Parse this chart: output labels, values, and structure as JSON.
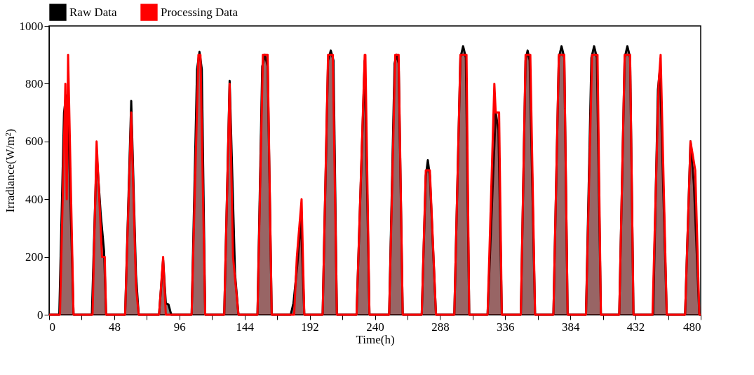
{
  "chart_data": {
    "type": "area",
    "xlabel": "Time(h)",
    "ylabel": "Irradiance(W/m²)",
    "xlim": [
      0,
      480
    ],
    "xticks": [
      0,
      {
        "value": 24,
        "label": null
      },
      48,
      {
        "value": 72,
        "label": null
      },
      96,
      {
        "value": 120,
        "label": null
      },
      144,
      {
        "value": 168,
        "label": null
      },
      192,
      {
        "value": 216,
        "label": null
      },
      240,
      {
        "value": 264,
        "label": null
      },
      288,
      {
        "value": 312,
        "label": null
      },
      336,
      {
        "value": 360,
        "label": null
      },
      384,
      {
        "value": 408,
        "label": null
      },
      432,
      {
        "value": 456,
        "label": null
      },
      480
    ],
    "ylim": [
      0,
      1000
    ],
    "yticks": [
      0,
      200,
      400,
      600,
      800,
      1000
    ],
    "grid": false,
    "legend": "top",
    "line_style": "solid",
    "series": [
      {
        "name": "Raw Data",
        "color": "#000000",
        "x": [
          0,
          7.5,
          11,
          12.5,
          14,
          18,
          31.5,
          35,
          38,
          40.5,
          42,
          56,
          60.5,
          64,
          66,
          81,
          84,
          86,
          88,
          90,
          105,
          109,
          110.8,
          112.5,
          115,
          129,
          133,
          137,
          139.5,
          153.5,
          157,
          159,
          161,
          164,
          178,
          180,
          183,
          185.5,
          188,
          201.5,
          205.5,
          207.5,
          209.5,
          212,
          226.5,
          232.5,
          236,
          250.5,
          254.5,
          256,
          257.5,
          260.5,
          274.5,
          277.5,
          279,
          280.5,
          285,
          298.5,
          303,
          305,
          307,
          309.5,
          323,
          329,
          331,
          333.5,
          347.5,
          351,
          352.5,
          354,
          358,
          371.5,
          375.5,
          377.5,
          379.5,
          382,
          395.5,
          399.5,
          401.5,
          403.5,
          406.5,
          420,
          424,
          426,
          428,
          430.5,
          445,
          448.5,
          450,
          455,
          468.5,
          472.5,
          475,
          479,
          480
        ],
        "values": [
          0,
          0,
          700,
          760,
          700,
          0,
          0,
          560,
          350,
          220,
          0,
          0,
          740,
          140,
          0,
          0,
          190,
          40,
          35,
          0,
          0,
          850,
          910,
          850,
          0,
          0,
          810,
          140,
          0,
          0,
          860,
          900,
          860,
          0,
          0,
          40,
          180,
          330,
          0,
          0,
          880,
          915,
          880,
          0,
          0,
          880,
          0,
          0,
          870,
          900,
          870,
          0,
          0,
          480,
          535,
          480,
          0,
          0,
          890,
          930,
          890,
          0,
          0,
          700,
          640,
          0,
          0,
          880,
          915,
          880,
          0,
          0,
          890,
          930,
          890,
          0,
          0,
          890,
          930,
          890,
          0,
          0,
          890,
          930,
          890,
          0,
          0,
          780,
          850,
          0,
          0,
          600,
          450,
          0,
          0
        ]
      },
      {
        "name": "Processing Data",
        "color": "#ff0000",
        "x": [
          0,
          8,
          12,
          13,
          14,
          18,
          32,
          35,
          37,
          39,
          41,
          42,
          56,
          60.5,
          64,
          66,
          81,
          84,
          86,
          105,
          110,
          111.5,
          115,
          129,
          133,
          135.5,
          137.5,
          139.5,
          153.5,
          157.5,
          161,
          164,
          180.5,
          182.5,
          186,
          188,
          201.5,
          205.5,
          209,
          212,
          226.5,
          232.5,
          233,
          236,
          250.5,
          255,
          257.5,
          260.5,
          274.5,
          277.5,
          280.5,
          285,
          298.5,
          303,
          307.5,
          309.5,
          323,
          328,
          329,
          331.5,
          333.5,
          347.5,
          351,
          354.5,
          358,
          371.5,
          375.5,
          379.5,
          382,
          395.5,
          400,
          404,
          406.5,
          420,
          424,
          428,
          430.5,
          444.5,
          449,
          450.5,
          455,
          468.5,
          472.5,
          476,
          479,
          480
        ],
        "values": [
          0,
          0,
          800,
          400,
          900,
          0,
          0,
          600,
          400,
          200,
          200,
          0,
          0,
          700,
          100,
          0,
          0,
          200,
          0,
          0,
          900,
          900,
          0,
          0,
          800,
          200,
          100,
          0,
          0,
          900,
          900,
          0,
          0,
          200,
          400,
          0,
          0,
          900,
          900,
          0,
          0,
          900,
          900,
          0,
          0,
          900,
          900,
          0,
          0,
          500,
          500,
          0,
          0,
          900,
          900,
          0,
          0,
          800,
          700,
          700,
          0,
          0,
          900,
          900,
          0,
          0,
          900,
          900,
          0,
          0,
          900,
          900,
          0,
          0,
          900,
          900,
          0,
          0,
          800,
          900,
          0,
          0,
          600,
          500,
          0,
          0
        ]
      }
    ]
  }
}
